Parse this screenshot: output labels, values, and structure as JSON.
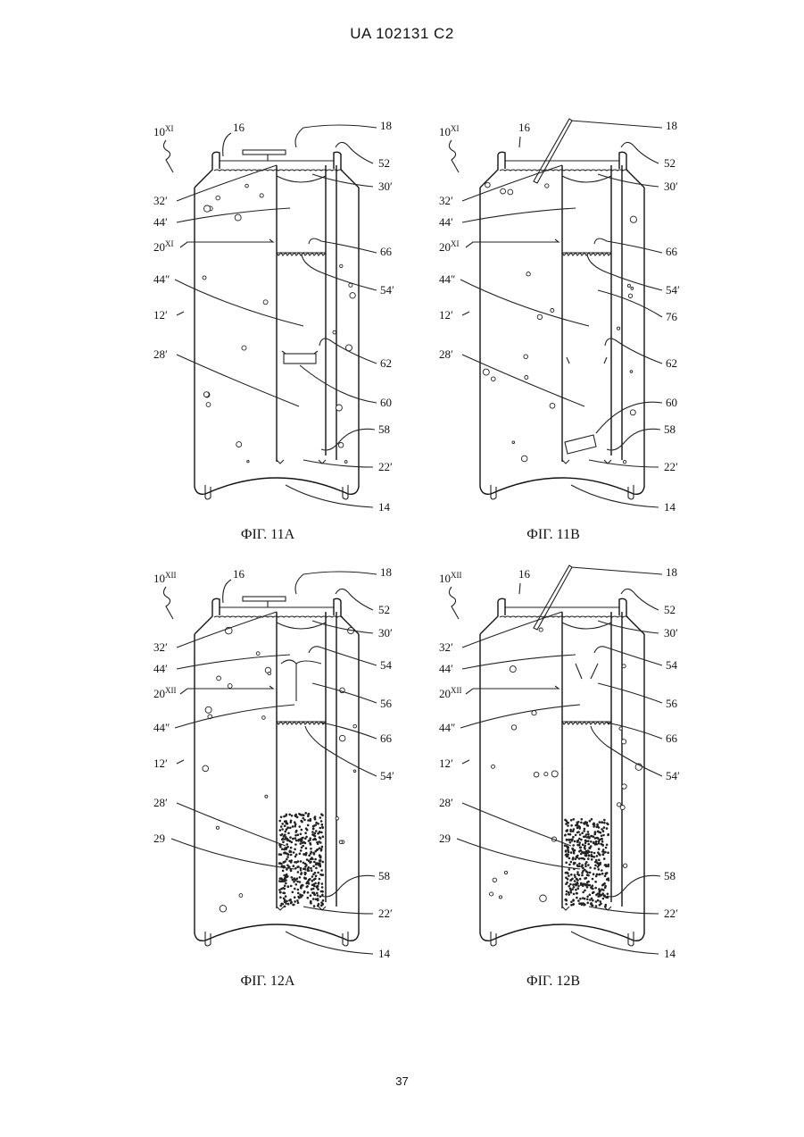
{
  "header": {
    "text": "UA   102131   C2"
  },
  "page_number": "37",
  "figures": [
    {
      "caption": "ФІГ. 11А",
      "variant": "XI",
      "lid_open": false,
      "granules": false,
      "labels": {
        "ref": "10",
        "ref_sup": "XI",
        "lid": "16",
        "tab": "18",
        "top": "52",
        "wall_l": "32′",
        "wall_r": "30′",
        "head": "44′",
        "mod": "20",
        "mod_sup": "XI",
        "a": "66",
        "b": "54′",
        "low": "44″",
        "body": "12′",
        "tube": "28′",
        "c": "62",
        "d": "60",
        "e": "58",
        "f": "22′",
        "base": "14"
      }
    },
    {
      "caption": "ФІГ. 11В",
      "variant": "XI",
      "lid_open": true,
      "granules": false,
      "labels": {
        "ref": "10",
        "ref_sup": "XI",
        "lid": "16",
        "tab": "18",
        "top": "52",
        "wall_l": "32′",
        "wall_r": "30′",
        "head": "44′",
        "mod": "20",
        "mod_sup": "XI",
        "a": "66",
        "b": "54′",
        "low": "44″",
        "extra": "76",
        "body": "12′",
        "tube": "28′",
        "c": "62",
        "d": "60",
        "e": "58",
        "f": "22′",
        "base": "14"
      }
    },
    {
      "caption": "ФІГ. 12А",
      "variant": "XII",
      "lid_open": false,
      "granules": true,
      "labels": {
        "ref": "10",
        "ref_sup": "XII",
        "lid": "16",
        "tab": "18",
        "top": "52",
        "wall_l": "32′",
        "wall_r": "30′",
        "head": "44′",
        "mod": "20",
        "mod_sup": "XII",
        "a": "54",
        "b": "56",
        "low": "44″",
        "c": "66",
        "d": "54′",
        "body": "12′",
        "tube": "28′",
        "gran": "29",
        "e": "58",
        "f": "22′",
        "base": "14"
      }
    },
    {
      "caption": "ФІГ. 12В",
      "variant": "XII",
      "lid_open": true,
      "granules": true,
      "labels": {
        "ref": "10",
        "ref_sup": "XII",
        "lid": "16",
        "tab": "18",
        "top": "52",
        "wall_l": "32′",
        "wall_r": "30′",
        "head": "44′",
        "mod": "20",
        "mod_sup": "XII",
        "a": "54",
        "b": "56",
        "low": "44″",
        "c": "66",
        "d": "54′",
        "body": "12′",
        "tube": "28′",
        "gran": "29",
        "e": "58",
        "f": "22′",
        "base": "14"
      }
    }
  ]
}
